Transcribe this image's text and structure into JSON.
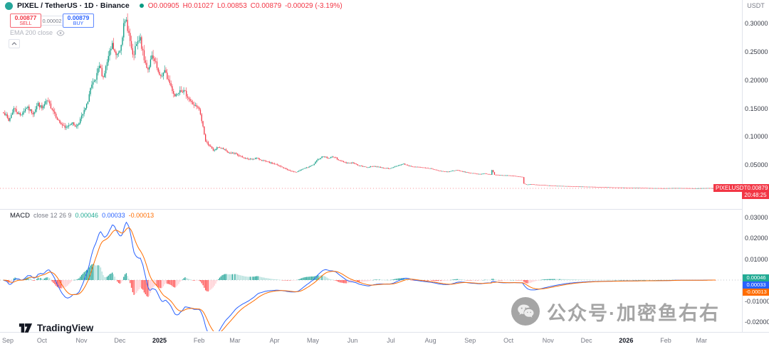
{
  "topbar": {
    "symbol": "PIXEL / TetherUS · 1D · Binance",
    "ohlc": {
      "o": "O0.00905",
      "h": "H0.01027",
      "l": "L0.00853",
      "c": "C0.00879",
      "change": "-0.00029 (-3.19%)"
    },
    "quote_currency": "USDT"
  },
  "trade_widget": {
    "sell_price": "0.00877",
    "sell_label": "SELL",
    "spread": "0.00002",
    "buy_price": "0.00879",
    "buy_label": "BUY"
  },
  "indicators": {
    "ema_label": "EMA 200 close"
  },
  "macd_header": {
    "name": "MACD",
    "params": "close 12 26 9",
    "hist_value": "0.00046",
    "macd_value": "0.00033",
    "signal_value": "-0.00013"
  },
  "price_axis": {
    "labels": [
      "0.30000",
      "0.25000",
      "0.20000",
      "0.15000",
      "0.10000",
      "0.05000"
    ],
    "tag_symbol": "PIXELUSDT",
    "tag_price": "0.00879",
    "countdown": "20:48:25"
  },
  "macd_axis": {
    "labels": [
      "0.03000",
      "0.02000",
      "0.01000",
      "-0.01000",
      "-0.02000"
    ],
    "tags": [
      {
        "text": "0.00046",
        "color": "#22ab94"
      },
      {
        "text": "0.00033",
        "color": "#2962ff"
      },
      {
        "text": "-0.00013",
        "color": "#ff6d00"
      }
    ]
  },
  "time_axis": {
    "labels": [
      {
        "label": "Sep",
        "day": 0
      },
      {
        "label": "Oct",
        "day": 30
      },
      {
        "label": "Nov",
        "day": 61
      },
      {
        "label": "Dec",
        "day": 91
      },
      {
        "label": "2025",
        "day": 122,
        "major": true
      },
      {
        "label": "Feb",
        "day": 153
      },
      {
        "label": "Mar",
        "day": 181
      },
      {
        "label": "Apr",
        "day": 212
      },
      {
        "label": "May",
        "day": 242
      },
      {
        "label": "Jun",
        "day": 273
      },
      {
        "label": "Jul",
        "day": 303
      },
      {
        "label": "Aug",
        "day": 334
      },
      {
        "label": "Sep",
        "day": 365
      },
      {
        "label": "Oct",
        "day": 395
      },
      {
        "label": "Nov",
        "day": 426
      },
      {
        "label": "Dec",
        "day": 456
      },
      {
        "label": "2026",
        "day": 487,
        "major": true
      },
      {
        "label": "Feb",
        "day": 518
      },
      {
        "label": "Mar",
        "day": 546
      }
    ]
  },
  "watermark": {
    "text": "公众号·加密鱼右右"
  },
  "logo": {
    "text": "TradingView"
  },
  "chart_data": [
    {
      "type": "candlestick",
      "title": "PIXEL / TetherUS · 1D · Binance",
      "ylabel": "Price (USDT)",
      "y_axis_ticks": [
        0.3,
        0.25,
        0.2,
        0.15,
        0.1,
        0.05
      ],
      "x_range": "Sep 2024 - Mar 2026, daily bars",
      "days_total": 557,
      "current_price": 0.00879,
      "ohlc_last": {
        "open": 0.00905,
        "high": 0.01027,
        "low": 0.00853,
        "close": 0.00879,
        "change": -0.00029,
        "change_pct": -3.19
      },
      "price_anchors": [
        [
          0,
          0.145
        ],
        [
          4,
          0.128
        ],
        [
          8,
          0.15
        ],
        [
          13,
          0.138
        ],
        [
          18,
          0.152
        ],
        [
          23,
          0.142
        ],
        [
          27,
          0.158
        ],
        [
          30,
          0.15
        ],
        [
          34,
          0.163
        ],
        [
          38,
          0.15
        ],
        [
          43,
          0.128
        ],
        [
          48,
          0.115
        ],
        [
          53,
          0.125
        ],
        [
          57,
          0.118
        ],
        [
          61,
          0.135
        ],
        [
          65,
          0.155
        ],
        [
          68,
          0.185
        ],
        [
          72,
          0.2
        ],
        [
          75,
          0.225
        ],
        [
          78,
          0.205
        ],
        [
          82,
          0.24
        ],
        [
          85,
          0.262
        ],
        [
          88,
          0.242
        ],
        [
          91,
          0.255
        ],
        [
          94,
          0.295
        ],
        [
          96,
          0.305
        ],
        [
          98,
          0.282
        ],
        [
          101,
          0.24
        ],
        [
          104,
          0.262
        ],
        [
          107,
          0.272
        ],
        [
          110,
          0.235
        ],
        [
          113,
          0.22
        ],
        [
          116,
          0.24
        ],
        [
          119,
          0.228
        ],
        [
          122,
          0.205
        ],
        [
          126,
          0.215
        ],
        [
          130,
          0.195
        ],
        [
          134,
          0.172
        ],
        [
          138,
          0.185
        ],
        [
          142,
          0.178
        ],
        [
          147,
          0.16
        ],
        [
          151,
          0.152
        ],
        [
          153,
          0.148
        ],
        [
          156,
          0.118
        ],
        [
          158,
          0.092
        ],
        [
          161,
          0.085
        ],
        [
          164,
          0.075
        ],
        [
          168,
          0.082
        ],
        [
          172,
          0.078
        ],
        [
          176,
          0.072
        ],
        [
          181,
          0.07
        ],
        [
          186,
          0.064
        ],
        [
          192,
          0.06
        ],
        [
          198,
          0.062
        ],
        [
          205,
          0.056
        ],
        [
          212,
          0.052
        ],
        [
          218,
          0.046
        ],
        [
          224,
          0.04
        ],
        [
          228,
          0.037
        ],
        [
          233,
          0.042
        ],
        [
          238,
          0.046
        ],
        [
          242,
          0.05
        ],
        [
          246,
          0.06
        ],
        [
          250,
          0.066
        ],
        [
          254,
          0.062
        ],
        [
          258,
          0.065
        ],
        [
          263,
          0.058
        ],
        [
          268,
          0.054
        ],
        [
          273,
          0.054
        ],
        [
          278,
          0.049
        ],
        [
          284,
          0.046
        ],
        [
          290,
          0.048
        ],
        [
          297,
          0.045
        ],
        [
          303,
          0.044
        ],
        [
          308,
          0.049
        ],
        [
          313,
          0.052
        ],
        [
          318,
          0.048
        ],
        [
          325,
          0.046
        ],
        [
          334,
          0.044
        ],
        [
          340,
          0.04
        ],
        [
          347,
          0.038
        ],
        [
          354,
          0.041
        ],
        [
          360,
          0.038
        ],
        [
          365,
          0.036
        ],
        [
          371,
          0.034
        ],
        [
          377,
          0.035
        ],
        [
          381,
          0.033
        ],
        [
          382,
          0.041
        ],
        [
          384,
          0.033
        ],
        [
          389,
          0.032
        ],
        [
          395,
          0.0315
        ],
        [
          400,
          0.0305
        ],
        [
          405,
          0.029
        ],
        [
          406,
          0.0285
        ],
        [
          407,
          0.017
        ],
        [
          409,
          0.0155
        ],
        [
          413,
          0.016
        ],
        [
          418,
          0.015
        ],
        [
          423,
          0.0145
        ],
        [
          426,
          0.014
        ],
        [
          433,
          0.0132
        ],
        [
          440,
          0.0128
        ],
        [
          448,
          0.0122
        ],
        [
          456,
          0.0118
        ],
        [
          464,
          0.0112
        ],
        [
          472,
          0.0108
        ],
        [
          480,
          0.0103
        ],
        [
          487,
          0.01
        ],
        [
          495,
          0.0097
        ],
        [
          503,
          0.0094
        ],
        [
          511,
          0.0091
        ],
        [
          518,
          0.009
        ],
        [
          526,
          0.0093
        ],
        [
          534,
          0.0091
        ],
        [
          540,
          0.0089
        ],
        [
          546,
          0.009
        ],
        [
          551,
          0.0093
        ],
        [
          555,
          0.00905
        ],
        [
          557,
          0.00879
        ]
      ],
      "colors": {
        "up": "#089981",
        "down": "#f23645"
      }
    },
    {
      "type": "macd",
      "title": "MACD close 12 26 9",
      "params": {
        "fast": 12,
        "slow": 26,
        "signal": 9
      },
      "y_axis_ticks": [
        0.03,
        0.02,
        0.01,
        -0.01,
        -0.02
      ],
      "last_values": {
        "histogram": 0.00046,
        "macd": 0.00033,
        "signal": -0.00013
      },
      "colors": {
        "macd": "#2962ff",
        "signal": "#ff6d00",
        "hist_up": "#26a69a",
        "hist_up_weak": "#b2dfdb",
        "hist_down": "#ff5252",
        "hist_down_weak": "#ffcdd2"
      }
    }
  ]
}
